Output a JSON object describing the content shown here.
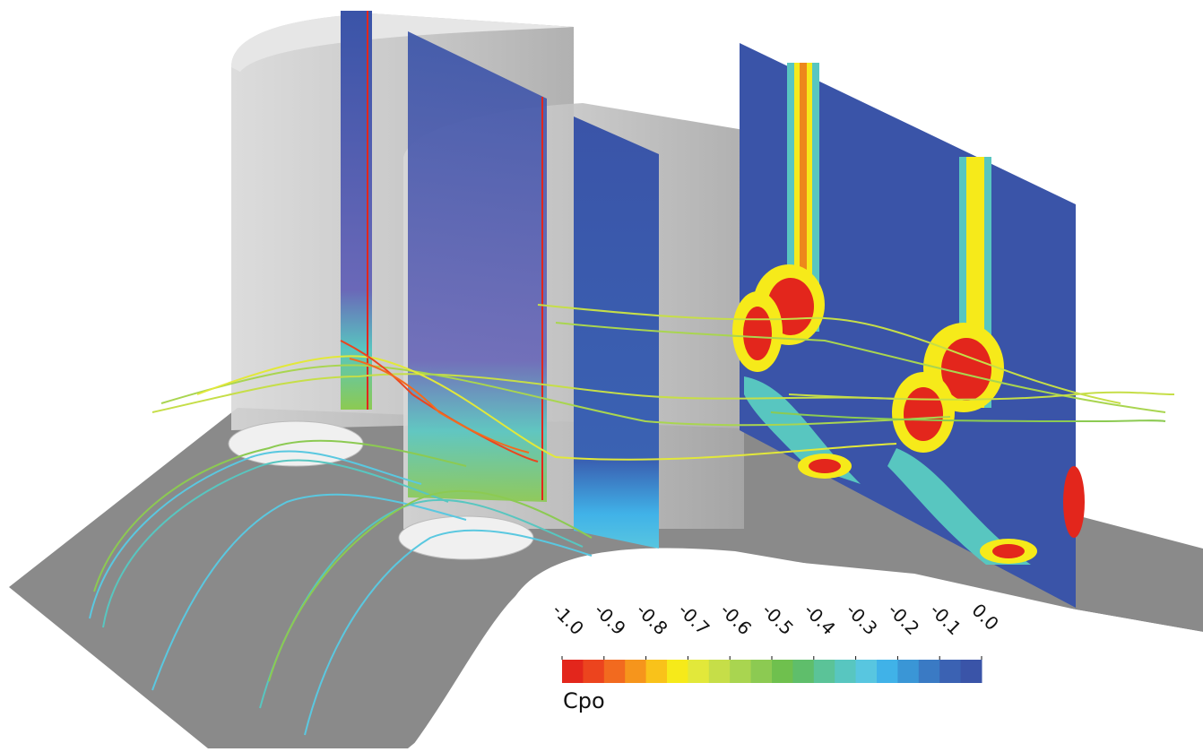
{
  "colorbar": {
    "label": "Cpo",
    "ticks": [
      {
        "value": -1,
        "label": "-1.0"
      },
      -0.9,
      -0.8,
      -0.7,
      -0.6,
      -0.5,
      -0.4,
      -0.3,
      -0.2,
      -0.1,
      {
        "value": 0,
        "label": "0.0"
      }
    ],
    "range": [
      -1,
      0
    ],
    "colors": [
      "#e3261c",
      "#ec441e",
      "#f26a1f",
      "#f6951c",
      "#f9c21a",
      "#f6ea1a",
      "#e2e83a",
      "#c6de48",
      "#a9d550",
      "#8cca52",
      "#6fc04e",
      "#5fbe6b",
      "#5bc398",
      "#58c6c0",
      "#58c6e0",
      "#40b2e8",
      "#3a96d6",
      "#3a7ac4",
      "#3b62b3",
      "#3a54a8"
    ]
  }
}
